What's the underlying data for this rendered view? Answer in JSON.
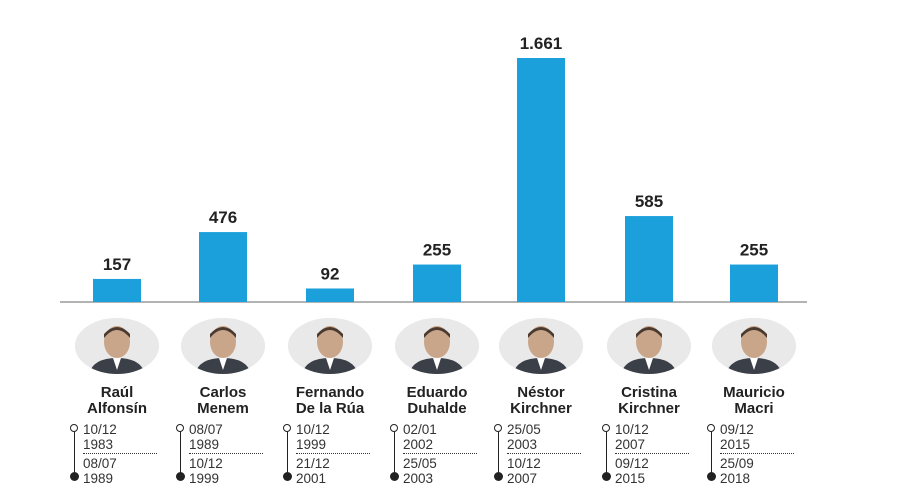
{
  "chart_data": {
    "type": "bar",
    "categories": [
      "Raúl Alfonsín",
      "Carlos Menem",
      "Fernando De la Rúa",
      "Eduardo Duhalde",
      "Néstor Kirchner",
      "Cristina Kirchner",
      "Mauricio Macri"
    ],
    "values": [
      157,
      476,
      92,
      255,
      1661,
      585,
      255
    ],
    "value_labels": [
      "157",
      "476",
      "92",
      "255",
      "1.661",
      "585",
      "255"
    ],
    "title": "",
    "xlabel": "",
    "ylabel": "",
    "ylim": [
      0,
      1750
    ],
    "grid": false,
    "bar_color": "#1ba0dc",
    "baseline_color": "#9a9a9a"
  },
  "presidents": [
    {
      "name_line1": "Raúl",
      "name_line2": "Alfonsín",
      "start_day": "10/12",
      "start_year": "1983",
      "end_day": "08/07",
      "end_year": "1989",
      "photo_icon": "portrait-icon"
    },
    {
      "name_line1": "Carlos",
      "name_line2": "Menem",
      "start_day": "08/07",
      "start_year": "1989",
      "end_day": "10/12",
      "end_year": "1999",
      "photo_icon": "portrait-icon"
    },
    {
      "name_line1": "Fernando",
      "name_line2": "De la Rúa",
      "start_day": "10/12",
      "start_year": "1999",
      "end_day": "21/12",
      "end_year": "2001",
      "photo_icon": "portrait-icon"
    },
    {
      "name_line1": "Eduardo",
      "name_line2": "Duhalde",
      "start_day": "02/01",
      "start_year": "2002",
      "end_day": "25/05",
      "end_year": "2003",
      "photo_icon": "portrait-icon"
    },
    {
      "name_line1": "Néstor",
      "name_line2": "Kirchner",
      "start_day": "25/05",
      "start_year": "2003",
      "end_day": "10/12",
      "end_year": "2007",
      "photo_icon": "portrait-icon"
    },
    {
      "name_line1": "Cristina",
      "name_line2": "Kirchner",
      "start_day": "10/12",
      "start_year": "2007",
      "end_day": "09/12",
      "end_year": "2015",
      "photo_icon": "portrait-icon"
    },
    {
      "name_line1": "Mauricio",
      "name_line2": "Macri",
      "start_day": "09/12",
      "start_year": "2015",
      "end_day": "25/09",
      "end_year": "2018",
      "photo_icon": "portrait-icon"
    }
  ]
}
